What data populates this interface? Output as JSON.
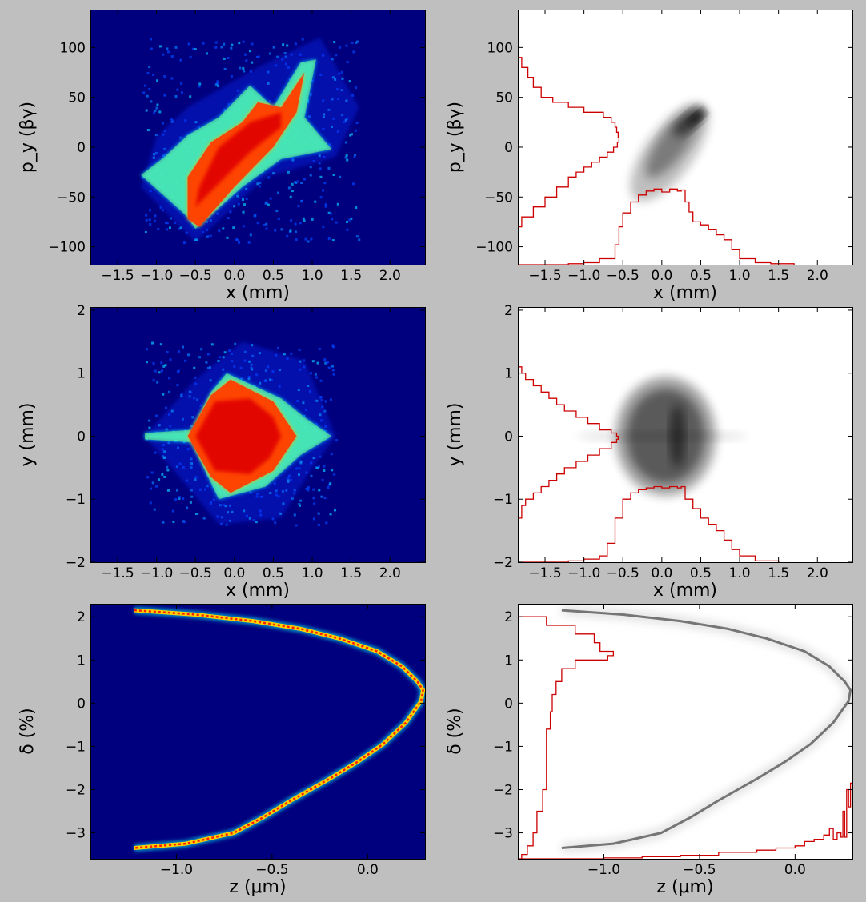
{
  "figure": {
    "background": "#bfbfbf"
  },
  "chart_data": [
    {
      "type": "heatmap",
      "colormap": "jet",
      "background_color": "#00007f",
      "xlabel": "x (mm)",
      "ylabel": "p_y (βγ)",
      "xlim": [
        -1.85,
        2.45
      ],
      "ylim": [
        -118,
        138
      ],
      "x_ticks": [
        -1.5,
        -1.0,
        -0.5,
        0.0,
        0.5,
        1.0,
        1.5,
        2.0
      ],
      "x_tick_labels": [
        "−1.5",
        "−1.0",
        "−0.5",
        "0.0",
        "0.5",
        "1.0",
        "1.5",
        "2.0"
      ],
      "y_ticks": [
        -100,
        -50,
        0,
        50,
        100
      ],
      "y_tick_labels": [
        "−100",
        "−50",
        "0",
        "50",
        "100"
      ],
      "halo": [
        [
          -1.2,
          -40
        ],
        [
          -0.5,
          -95
        ],
        [
          0.4,
          -30
        ],
        [
          1.3,
          -10
        ],
        [
          1.6,
          40
        ],
        [
          1.1,
          110
        ],
        [
          0.3,
          80
        ],
        [
          -0.6,
          40
        ],
        [
          -1.0,
          10
        ]
      ],
      "edge": [
        [
          -1.2,
          -28
        ],
        [
          -0.6,
          -70
        ],
        [
          -0.5,
          -82
        ],
        [
          0.1,
          -40
        ],
        [
          0.6,
          -12
        ],
        [
          1.25,
          -2
        ],
        [
          0.9,
          30
        ],
        [
          1.05,
          88
        ],
        [
          0.85,
          85
        ],
        [
          0.5,
          40
        ],
        [
          0.2,
          62
        ],
        [
          -0.2,
          30
        ],
        [
          -0.6,
          12
        ],
        [
          -0.9,
          -10
        ]
      ],
      "core": [
        [
          -0.6,
          -72
        ],
        [
          -0.45,
          -80
        ],
        [
          0.0,
          -40
        ],
        [
          0.5,
          0
        ],
        [
          0.8,
          35
        ],
        [
          0.9,
          75
        ],
        [
          0.6,
          40
        ],
        [
          0.3,
          45
        ],
        [
          0.1,
          25
        ],
        [
          -0.3,
          5
        ],
        [
          -0.6,
          -30
        ]
      ],
      "hot": [
        [
          -0.5,
          -60
        ],
        [
          0.2,
          -5
        ],
        [
          0.6,
          20
        ],
        [
          0.6,
          35
        ],
        [
          0.2,
          25
        ],
        [
          -0.2,
          0
        ],
        [
          -0.45,
          -40
        ]
      ]
    },
    {
      "type": "heatmap",
      "colormap": "gray_r",
      "xlabel": "x (mm)",
      "ylabel": "p_y (βγ)",
      "xlim": [
        -1.85,
        2.45
      ],
      "ylim": [
        -118,
        138
      ],
      "x_ticks": [
        -1.5,
        -1.0,
        -0.5,
        0.0,
        0.5,
        1.0,
        1.5,
        2.0
      ],
      "x_tick_labels": [
        "−1.5",
        "−1.0",
        "−0.5",
        "0.0",
        "0.5",
        "1.0",
        "1.5",
        "2.0"
      ],
      "y_ticks": [
        -100,
        -50,
        0,
        50,
        100
      ],
      "y_tick_labels": [
        "−100",
        "−50",
        "0",
        "50",
        "100"
      ],
      "density": [
        {
          "cx": 0.1,
          "cy": -5,
          "rx": 0.75,
          "ry": 24,
          "angle": -54,
          "opacity": 0.25
        },
        {
          "cx": 0.15,
          "cy": 5,
          "rx": 0.55,
          "ry": 14,
          "angle": -54,
          "opacity": 0.35
        },
        {
          "cx": 0.35,
          "cy": 25,
          "rx": 0.25,
          "ry": 8,
          "angle": -40,
          "opacity": 0.55
        },
        {
          "cx": 0.45,
          "cy": 30,
          "rx": 0.12,
          "ry": 4,
          "angle": -40,
          "opacity": 0.8
        }
      ],
      "profile_x": {
        "color": "#cc0000",
        "x": [
          -1.85,
          -1.6,
          -1.4,
          -1.2,
          -1.0,
          -0.8,
          -0.6,
          -0.55,
          -0.5,
          -0.4,
          -0.3,
          -0.2,
          -0.1,
          0.0,
          0.1,
          0.2,
          0.25,
          0.3,
          0.35,
          0.4,
          0.5,
          0.6,
          0.7,
          0.8,
          0.9,
          1.0,
          1.2,
          1.4,
          1.7
        ],
        "value": [
          -118,
          -118,
          -118,
          -117,
          -116,
          -112,
          -98,
          -80,
          -66,
          -55,
          -48,
          -44,
          -42,
          -45,
          -42,
          -44,
          -43,
          -55,
          -65,
          -75,
          -78,
          -83,
          -88,
          -93,
          -103,
          -112,
          -116,
          -117,
          -118
        ]
      },
      "profile_y": {
        "color": "#cc0000",
        "y": [
          100,
          90,
          80,
          70,
          60,
          50,
          45,
          40,
          35,
          30,
          25,
          20,
          15,
          10,
          5,
          0,
          -5,
          -10,
          -15,
          -20,
          -25,
          -30,
          -40,
          -50,
          -60,
          -70,
          -80
        ],
        "value": [
          -1.85,
          -1.8,
          -1.72,
          -1.65,
          -1.55,
          -1.4,
          -1.2,
          -1.0,
          -0.75,
          -0.65,
          -0.6,
          -0.58,
          -0.56,
          -0.55,
          -0.57,
          -0.62,
          -0.7,
          -0.8,
          -0.9,
          -1.0,
          -1.1,
          -1.2,
          -1.35,
          -1.5,
          -1.65,
          -1.8,
          -1.85
        ]
      }
    },
    {
      "type": "heatmap",
      "colormap": "jet",
      "background_color": "#00007f",
      "xlabel": "x (mm)",
      "ylabel": "y (mm)",
      "xlim": [
        -1.85,
        2.45
      ],
      "ylim": [
        -2,
        2.05
      ],
      "x_ticks": [
        -1.5,
        -1.0,
        -0.5,
        0.0,
        0.5,
        1.0,
        1.5,
        2.0
      ],
      "x_tick_labels": [
        "−1.5",
        "−1.0",
        "−0.5",
        "0.0",
        "0.5",
        "1.0",
        "1.5",
        "2.0"
      ],
      "y_ticks": [
        -2,
        -1,
        0,
        1,
        2
      ],
      "y_tick_labels": [
        "−2",
        "−1",
        "0",
        "1",
        "2"
      ],
      "halo": [
        [
          -1.15,
          0
        ],
        [
          -0.6,
          -0.8
        ],
        [
          -0.2,
          -1.4
        ],
        [
          0.6,
          -1.3
        ],
        [
          1.0,
          -0.5
        ],
        [
          1.3,
          0
        ],
        [
          0.9,
          1.2
        ],
        [
          0.1,
          1.5
        ],
        [
          -0.5,
          0.9
        ]
      ],
      "edge": [
        [
          -1.15,
          0.05
        ],
        [
          -0.55,
          0.1
        ],
        [
          -0.3,
          0.7
        ],
        [
          -0.1,
          1.0
        ],
        [
          0.6,
          0.6
        ],
        [
          0.9,
          0.3
        ],
        [
          1.25,
          0
        ],
        [
          0.85,
          -0.3
        ],
        [
          0.4,
          -0.8
        ],
        [
          -0.2,
          -1.0
        ],
        [
          -0.55,
          -0.1
        ],
        [
          -1.15,
          -0.05
        ]
      ],
      "core": [
        [
          -0.6,
          0
        ],
        [
          -0.3,
          0.65
        ],
        [
          -0.05,
          0.9
        ],
        [
          0.5,
          0.55
        ],
        [
          0.8,
          0
        ],
        [
          0.5,
          -0.55
        ],
        [
          -0.05,
          -0.9
        ],
        [
          -0.3,
          -0.65
        ]
      ],
      "hot": [
        [
          -0.5,
          0
        ],
        [
          -0.25,
          0.55
        ],
        [
          0.2,
          0.6
        ],
        [
          0.5,
          0.3
        ],
        [
          0.6,
          0
        ],
        [
          0.45,
          -0.35
        ],
        [
          0.2,
          -0.6
        ],
        [
          -0.25,
          -0.55
        ]
      ]
    },
    {
      "type": "heatmap",
      "colormap": "gray_r",
      "xlabel": "x (mm)",
      "ylabel": "y (mm)",
      "xlim": [
        -1.85,
        2.45
      ],
      "ylim": [
        -2,
        2.05
      ],
      "x_ticks": [
        -1.5,
        -1.0,
        -0.5,
        0.0,
        0.5,
        1.0,
        1.5,
        2.0
      ],
      "x_tick_labels": [
        "−1.5",
        "−1.0",
        "−0.5",
        "0.0",
        "0.5",
        "1.0",
        "1.5",
        "2.0"
      ],
      "y_ticks": [
        -2,
        -1,
        0,
        1,
        2
      ],
      "y_tick_labels": [
        "−2",
        "−1",
        "0",
        "1",
        "2"
      ],
      "density": [
        {
          "cx": 0.0,
          "cy": 0,
          "rx": 1.1,
          "ry": 0.08,
          "angle": 0,
          "opacity": 0.12
        },
        {
          "cx": 0.05,
          "cy": 0,
          "rx": 0.65,
          "ry": 0.95,
          "angle": 0,
          "opacity": 0.35
        },
        {
          "cx": 0.05,
          "cy": 0,
          "rx": 0.5,
          "ry": 0.75,
          "angle": 0,
          "opacity": 0.45
        },
        {
          "cx": 0.2,
          "cy": 0,
          "rx": 0.1,
          "ry": 0.5,
          "angle": 0,
          "opacity": 0.5
        }
      ],
      "profile_x": {
        "color": "#cc0000",
        "x": [
          -1.85,
          -1.6,
          -1.4,
          -1.2,
          -1.0,
          -0.8,
          -0.7,
          -0.6,
          -0.5,
          -0.4,
          -0.3,
          -0.2,
          -0.1,
          0.0,
          0.1,
          0.2,
          0.25,
          0.3,
          0.4,
          0.5,
          0.6,
          0.7,
          0.8,
          0.9,
          1.0,
          1.2,
          1.5
        ],
        "value": [
          -2,
          -2,
          -2,
          -1.98,
          -1.95,
          -1.9,
          -1.7,
          -1.3,
          -1.0,
          -0.9,
          -0.85,
          -0.82,
          -0.8,
          -0.82,
          -0.8,
          -0.82,
          -0.8,
          -1.0,
          -1.15,
          -1.3,
          -1.4,
          -1.5,
          -1.65,
          -1.8,
          -1.9,
          -1.98,
          -2
        ]
      },
      "profile_y": {
        "color": "#cc0000",
        "y": [
          1.3,
          1.1,
          1.0,
          0.9,
          0.8,
          0.7,
          0.6,
          0.5,
          0.4,
          0.3,
          0.2,
          0.1,
          0.05,
          0,
          -0.05,
          -0.1,
          -0.2,
          -0.3,
          -0.4,
          -0.5,
          -0.6,
          -0.7,
          -0.8,
          -0.9,
          -1.0,
          -1.1,
          -1.3
        ],
        "value": [
          -1.85,
          -1.8,
          -1.75,
          -1.65,
          -1.55,
          -1.45,
          -1.35,
          -1.25,
          -1.1,
          -0.95,
          -0.8,
          -0.65,
          -0.58,
          -0.56,
          -0.58,
          -0.65,
          -0.8,
          -0.95,
          -1.1,
          -1.25,
          -1.35,
          -1.45,
          -1.55,
          -1.65,
          -1.75,
          -1.8,
          -1.85
        ]
      }
    },
    {
      "type": "heatmap",
      "colormap": "jet",
      "background_color": "#00007f",
      "xlabel": "z (μm)",
      "ylabel": "δ (%)",
      "xlim": [
        -1.45,
        0.3
      ],
      "ylim": [
        -3.6,
        2.3
      ],
      "x_ticks": [
        -1.0,
        -0.5,
        0.0
      ],
      "x_tick_labels": [
        "−1.0",
        "−0.5",
        "0.0"
      ],
      "y_ticks": [
        -3,
        -2,
        -1,
        0,
        1,
        2
      ],
      "y_tick_labels": [
        "−3",
        "−2",
        "−1",
        "0",
        "1",
        "2"
      ],
      "curve": {
        "z": [
          -1.22,
          -0.9,
          -0.6,
          -0.35,
          -0.15,
          0.05,
          0.18,
          0.26,
          0.29,
          0.28,
          0.2,
          0.08,
          -0.05,
          -0.2,
          -0.4,
          -0.55,
          -0.7,
          -0.95,
          -1.22
        ],
        "delta": [
          2.15,
          2.05,
          1.9,
          1.72,
          1.5,
          1.2,
          0.85,
          0.5,
          0.3,
          0.05,
          -0.45,
          -0.95,
          -1.35,
          -1.75,
          -2.25,
          -2.65,
          -3.0,
          -3.25,
          -3.35
        ]
      }
    },
    {
      "type": "heatmap",
      "colormap": "gray_r",
      "xlabel": "z (μm)",
      "ylabel": "δ (%)",
      "xlim": [
        -1.45,
        0.3
      ],
      "ylim": [
        -3.6,
        2.3
      ],
      "x_ticks": [
        -1.0,
        -0.5,
        0.0
      ],
      "x_tick_labels": [
        "−1.0",
        "−0.5",
        "0.0"
      ],
      "y_ticks": [
        -3,
        -2,
        -1,
        0,
        1,
        2
      ],
      "y_tick_labels": [
        "−3",
        "−2",
        "−1",
        "0",
        "1",
        "2"
      ],
      "curve": {
        "z": [
          -1.22,
          -0.9,
          -0.6,
          -0.35,
          -0.15,
          0.05,
          0.18,
          0.26,
          0.29,
          0.28,
          0.2,
          0.08,
          -0.05,
          -0.2,
          -0.4,
          -0.55,
          -0.7,
          -0.95,
          -1.22
        ],
        "delta": [
          2.15,
          2.05,
          1.9,
          1.72,
          1.5,
          1.2,
          0.85,
          0.5,
          0.3,
          0.05,
          -0.45,
          -0.95,
          -1.35,
          -1.75,
          -2.25,
          -2.65,
          -3.0,
          -3.25,
          -3.35
        ]
      },
      "profile_x": {
        "color": "#cc0000",
        "z": [
          -1.45,
          -1.2,
          -1.0,
          -0.8,
          -0.6,
          -0.4,
          -0.2,
          -0.1,
          0.0,
          0.05,
          0.1,
          0.15,
          0.18,
          0.2,
          0.22,
          0.24,
          0.25,
          0.26,
          0.27,
          0.28,
          0.29,
          0.3
        ],
        "value": [
          -3.6,
          -3.6,
          -3.58,
          -3.55,
          -3.52,
          -3.45,
          -3.4,
          -3.35,
          -3.3,
          -3.2,
          -3.15,
          -3.05,
          -2.9,
          -3.15,
          -3.0,
          -3.1,
          -2.5,
          -3.1,
          -2.0,
          -2.4,
          -1.85,
          -1.85
        ]
      },
      "profile_y": {
        "color": "#cc0000",
        "delta": [
          2.25,
          2.0,
          1.8,
          1.6,
          1.4,
          1.2,
          1.1,
          1.0,
          0.8,
          0.5,
          0.2,
          -0.2,
          -0.6,
          -1.0,
          -1.5,
          -2.0,
          -2.5,
          -3.0,
          -3.3,
          -3.5,
          -3.6
        ],
        "value": [
          -1.45,
          -1.3,
          -1.15,
          -1.05,
          -1.02,
          -0.95,
          -0.98,
          -1.15,
          -1.22,
          -1.25,
          -1.27,
          -1.28,
          -1.3,
          -1.3,
          -1.3,
          -1.32,
          -1.35,
          -1.37,
          -1.4,
          -1.43,
          -1.45
        ]
      }
    }
  ]
}
